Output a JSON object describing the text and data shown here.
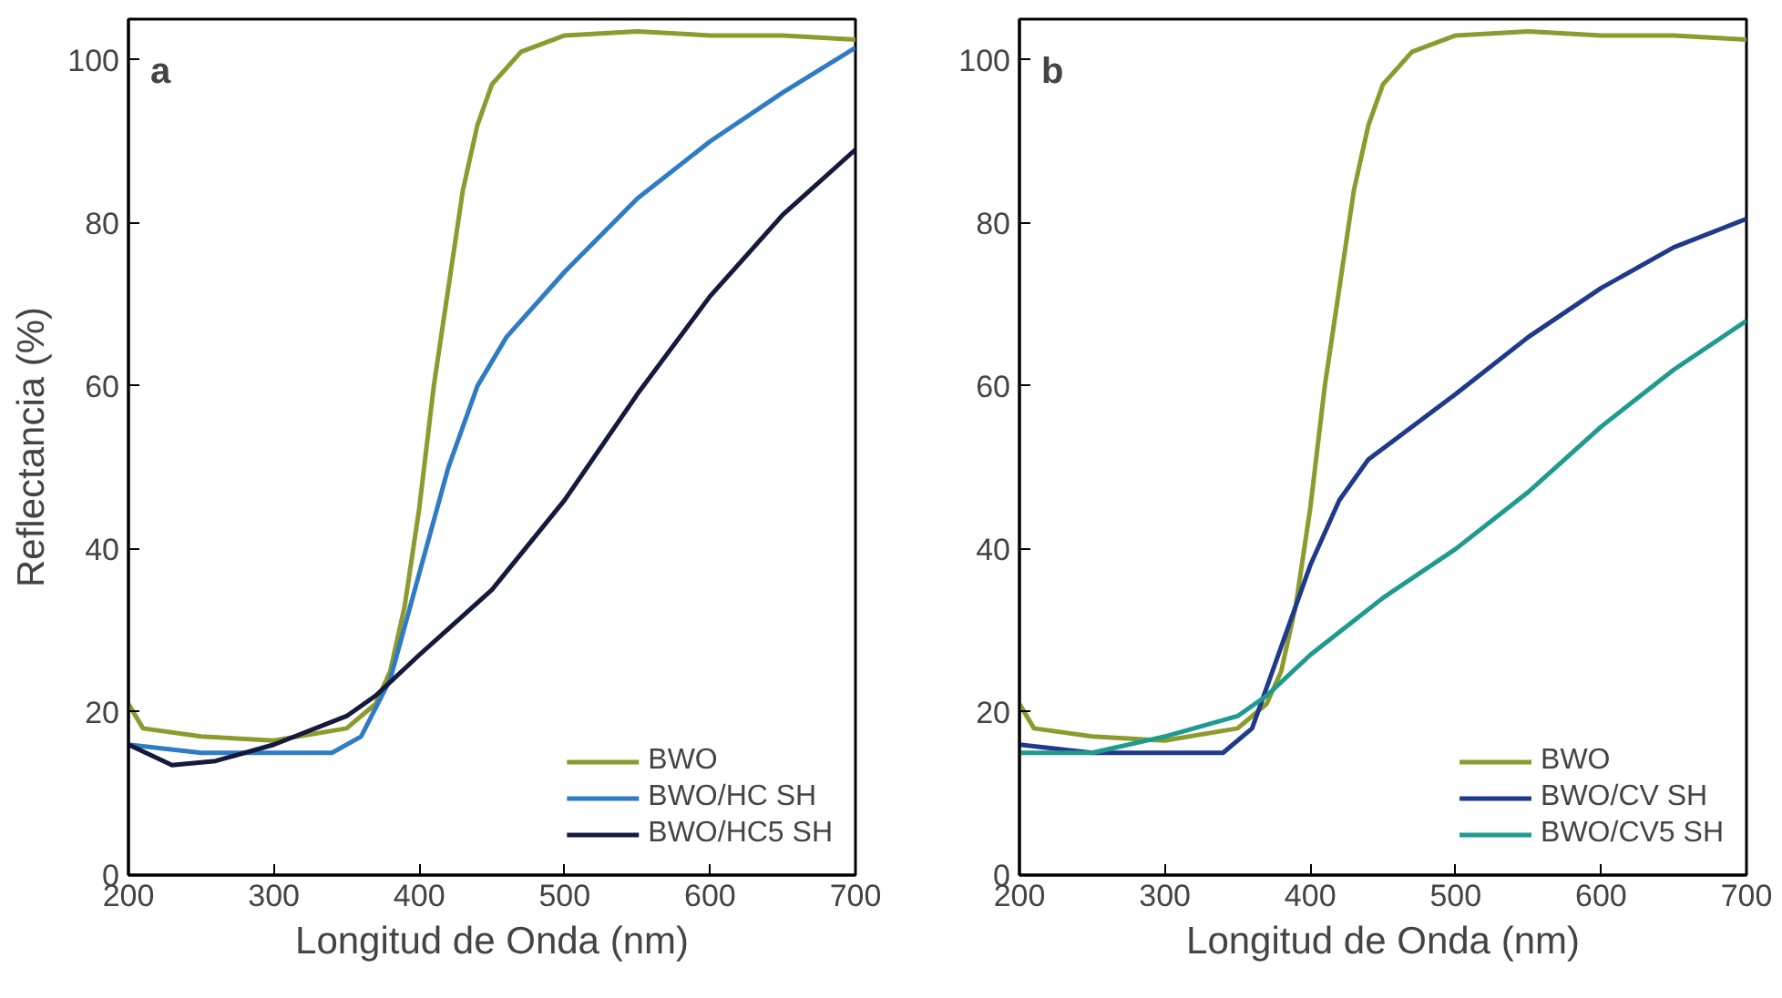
{
  "chart_data": [
    {
      "type": "line",
      "annotations": [
        "a"
      ],
      "xlabel": "Longitud de Onda (nm)",
      "ylabel": "Reflectancia (%)",
      "xlim": [
        200,
        700
      ],
      "ylim": [
        0,
        105
      ],
      "xticks": [
        200,
        300,
        400,
        500,
        600,
        700
      ],
      "yticks": [
        0,
        20,
        40,
        60,
        80,
        100
      ],
      "grid": false,
      "legend": "bottom right",
      "line_style": "solid",
      "x": [
        200,
        210,
        250,
        300,
        350,
        370,
        380,
        390,
        400,
        410,
        420,
        430,
        440,
        450,
        470,
        500,
        550,
        600,
        650,
        700
      ],
      "series": [
        {
          "name": "BWO",
          "color": "#8c9a2e",
          "values": [
            21,
            18,
            17,
            16.5,
            18,
            21,
            25,
            33,
            45,
            60,
            72,
            84,
            92,
            97,
            101,
            103,
            103.5,
            103,
            103,
            102.5
          ]
        },
        {
          "name": "BWO/HC SH",
          "color": "#2f7bc4",
          "x": [
            200,
            250,
            300,
            340,
            360,
            380,
            400,
            420,
            440,
            460,
            500,
            550,
            600,
            650,
            700
          ],
          "values": [
            16,
            15,
            15,
            15,
            17,
            24,
            37,
            50,
            60,
            66,
            74,
            83,
            90,
            96,
            101.5
          ]
        },
        {
          "name": "BWO/HC5 SH",
          "color": "#141a3c",
          "x": [
            200,
            230,
            260,
            300,
            350,
            370,
            400,
            450,
            500,
            550,
            600,
            650,
            700
          ],
          "values": [
            16,
            13.5,
            14,
            16,
            19.5,
            22,
            27,
            35,
            46,
            59,
            71,
            81,
            89
          ]
        }
      ]
    },
    {
      "type": "line",
      "annotations": [
        "b"
      ],
      "xlabel": "Longitud de Onda (nm)",
      "xlim": [
        200,
        700
      ],
      "ylim": [
        0,
        105
      ],
      "xticks": [
        200,
        300,
        400,
        500,
        600,
        700
      ],
      "yticks": [
        0,
        20,
        40,
        60,
        80,
        100
      ],
      "grid": false,
      "legend": "bottom right",
      "line_style": "solid",
      "x": [
        200,
        210,
        250,
        300,
        350,
        370,
        380,
        390,
        400,
        410,
        420,
        430,
        440,
        450,
        470,
        500,
        550,
        600,
        650,
        700
      ],
      "series": [
        {
          "name": "BWO",
          "color": "#8c9a2e",
          "values": [
            21,
            18,
            17,
            16.5,
            18,
            21,
            25,
            33,
            45,
            60,
            72,
            84,
            92,
            97,
            101,
            103,
            103.5,
            103,
            103,
            102.5
          ]
        },
        {
          "name": "BWO/CV SH",
          "color": "#1f3a8a",
          "x": [
            200,
            250,
            300,
            340,
            360,
            380,
            400,
            420,
            440,
            500,
            550,
            600,
            650,
            700
          ],
          "values": [
            16,
            15,
            15,
            15,
            18,
            28,
            38,
            46,
            51,
            59,
            66,
            72,
            77,
            80.5
          ]
        },
        {
          "name": "BWO/CV5 SH",
          "color": "#1f9a8f",
          "x": [
            200,
            250,
            300,
            350,
            370,
            400,
            450,
            500,
            550,
            600,
            650,
            700
          ],
          "values": [
            15,
            15,
            17,
            19.5,
            22,
            27,
            34,
            40,
            47,
            55,
            62,
            68
          ]
        }
      ]
    }
  ]
}
